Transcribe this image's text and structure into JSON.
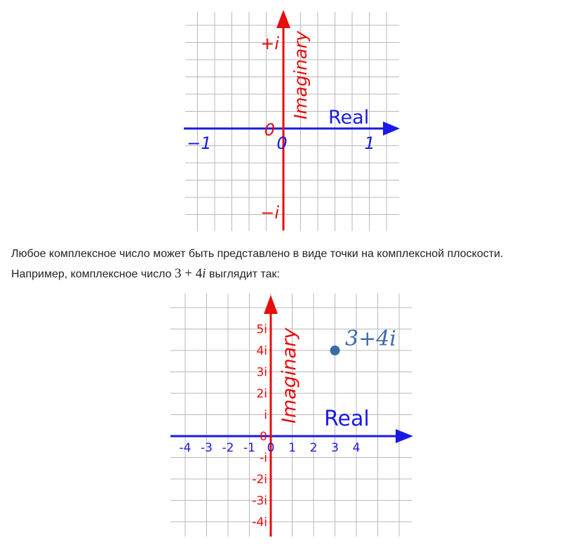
{
  "colors": {
    "grid": "#b8b8b8",
    "real_axis": "#1a1ae6",
    "imag_axis": "#e60d0d",
    "point": "#3b6aa8",
    "text": "#222222"
  },
  "diagram1": {
    "real_axis_label": "Real",
    "imag_axis_label": "Imaginary",
    "real_ticks": [
      "−1",
      "0",
      "1"
    ],
    "imag_top": "+i",
    "imag_zero": "0",
    "imag_bottom": "−i"
  },
  "paragraph": {
    "line1": "Любое комплексное число может быть представлено в виде точки на комплексной плоскости.",
    "line2_before": "Например, комплексное число ",
    "formula_a": "3",
    "formula_op": " + ",
    "formula_b": "4",
    "formula_i": "i",
    "line2_after": " выглядит так:"
  },
  "diagram2": {
    "real_axis_label": "Real",
    "imag_axis_label": "Imaginary",
    "real_ticks": [
      "-4",
      "-3",
      "-2",
      "-1",
      "0",
      "1",
      "2",
      "3",
      "4"
    ],
    "imag_ticks_pos": [
      "5i",
      "4i",
      "3i",
      "2i",
      "i"
    ],
    "imag_zero": "0",
    "imag_ticks_neg": [
      "-i",
      "-2i",
      "-3i",
      "-4i"
    ],
    "point_label": "3+4i",
    "point": {
      "x": 3,
      "y": 4
    }
  }
}
